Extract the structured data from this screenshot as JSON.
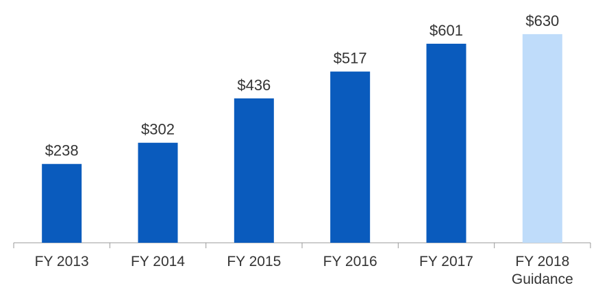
{
  "chart_data": {
    "type": "bar",
    "categories": [
      "FY 2013",
      "FY 2014",
      "FY 2015",
      "FY 2016",
      "FY 2017",
      "FY 2018\nGuidance"
    ],
    "values": [
      238,
      302,
      436,
      517,
      601,
      630
    ],
    "value_labels": [
      "$238",
      "$302",
      "$436",
      "$517",
      "$601",
      "$630"
    ],
    "colors": [
      "#0a5bbd",
      "#0a5bbd",
      "#0a5bbd",
      "#0a5bbd",
      "#0a5bbd",
      "#bfdcfa"
    ],
    "ylim": [
      0,
      700
    ]
  }
}
